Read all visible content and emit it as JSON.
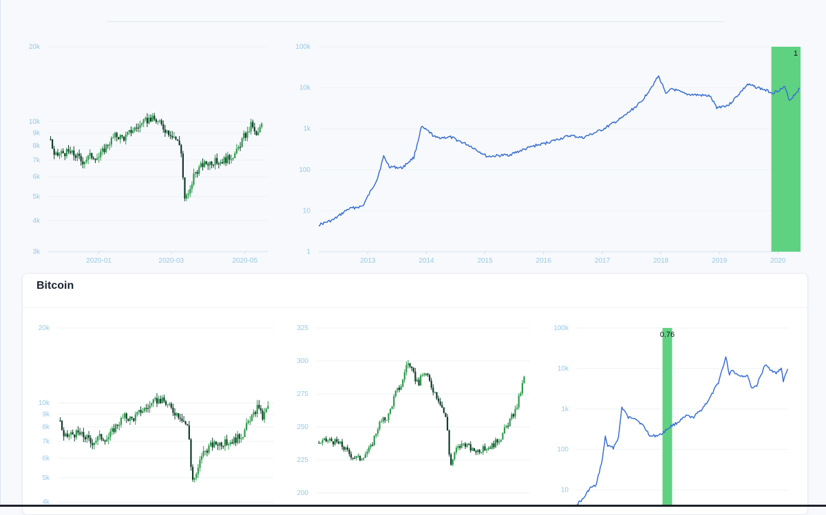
{
  "panel": {
    "title": "Bitcoin"
  },
  "colors": {
    "up": "#2a9a4a",
    "down": "#0f3b28",
    "line": "#3a6fd0",
    "highlight": "#5fd282",
    "tick": "#96c9e8",
    "grid": "#eef2f6"
  },
  "chart_data": [
    {
      "id": "top-left",
      "type": "candlestick",
      "scale": "log",
      "ylim": [
        3000,
        20000
      ],
      "yticks": [
        {
          "v": 3000,
          "label": "3k"
        },
        {
          "v": 4000,
          "label": "4k"
        },
        {
          "v": 5000,
          "label": "5k"
        },
        {
          "v": 6000,
          "label": "6k"
        },
        {
          "v": 7000,
          "label": "7k"
        },
        {
          "v": 8000,
          "label": "8k"
        },
        {
          "v": 9000,
          "label": "9k"
        },
        {
          "v": 10000,
          "label": "10k"
        },
        {
          "v": 20000,
          "label": "20k"
        }
      ],
      "xlim": [
        "2019-11-20",
        "2020-05-20"
      ],
      "xticks": [
        {
          "v": "2020-01-01",
          "label": "2020-01"
        },
        {
          "v": "2020-03-01",
          "label": "2020-03"
        },
        {
          "v": "2020-05-01",
          "label": "2020-05"
        }
      ],
      "series": [
        {
          "x": "2019-11-22",
          "y": 8500
        },
        {
          "x": "2019-11-25",
          "y": 7200
        },
        {
          "x": "2019-12-01",
          "y": 7500
        },
        {
          "x": "2019-12-08",
          "y": 7500
        },
        {
          "x": "2019-12-15",
          "y": 7200
        },
        {
          "x": "2019-12-18",
          "y": 6900
        },
        {
          "x": "2019-12-25",
          "y": 7300
        },
        {
          "x": "2020-01-01",
          "y": 7200
        },
        {
          "x": "2020-01-08",
          "y": 8100
        },
        {
          "x": "2020-01-15",
          "y": 8800
        },
        {
          "x": "2020-01-22",
          "y": 8600
        },
        {
          "x": "2020-01-29",
          "y": 9300
        },
        {
          "x": "2020-02-05",
          "y": 9700
        },
        {
          "x": "2020-02-12",
          "y": 10300
        },
        {
          "x": "2020-02-18",
          "y": 10100
        },
        {
          "x": "2020-02-25",
          "y": 9300
        },
        {
          "x": "2020-03-03",
          "y": 8800
        },
        {
          "x": "2020-03-09",
          "y": 7900
        },
        {
          "x": "2020-03-12",
          "y": 4900
        },
        {
          "x": "2020-03-16",
          "y": 5100
        },
        {
          "x": "2020-03-20",
          "y": 6200
        },
        {
          "x": "2020-03-27",
          "y": 6700
        },
        {
          "x": "2020-04-03",
          "y": 6900
        },
        {
          "x": "2020-04-10",
          "y": 6900
        },
        {
          "x": "2020-04-17",
          "y": 7100
        },
        {
          "x": "2020-04-24",
          "y": 7500
        },
        {
          "x": "2020-04-30",
          "y": 8700
        },
        {
          "x": "2020-05-03",
          "y": 8900
        },
        {
          "x": "2020-05-07",
          "y": 9900
        },
        {
          "x": "2020-05-10",
          "y": 8600
        },
        {
          "x": "2020-05-15",
          "y": 9700
        }
      ]
    },
    {
      "id": "top-right",
      "type": "line",
      "scale": "log",
      "ylim": [
        1,
        100000
      ],
      "yticks": [
        {
          "v": 1,
          "label": "1"
        },
        {
          "v": 10,
          "label": "10"
        },
        {
          "v": 100,
          "label": "100"
        },
        {
          "v": 1000,
          "label": "1k"
        },
        {
          "v": 10000,
          "label": "10k"
        },
        {
          "v": 100000,
          "label": "100k"
        }
      ],
      "xlim": [
        "2012-03-01",
        "2020-05-20"
      ],
      "xticks": [
        {
          "v": "2013-01-01",
          "label": "2013"
        },
        {
          "v": "2014-01-01",
          "label": "2014"
        },
        {
          "v": "2015-01-01",
          "label": "2015"
        },
        {
          "v": "2016-01-01",
          "label": "2016"
        },
        {
          "v": "2017-01-01",
          "label": "2017"
        },
        {
          "v": "2018-01-01",
          "label": "2018"
        },
        {
          "v": "2019-01-01",
          "label": "2019"
        },
        {
          "v": "2020-01-01",
          "label": "2020"
        }
      ],
      "highlight": {
        "x0": "2019-11-20",
        "x1": "2020-05-20",
        "label": "1"
      },
      "series": [
        {
          "x": "2012-03-01",
          "y": 4.5
        },
        {
          "x": "2012-06-01",
          "y": 6
        },
        {
          "x": "2012-09-01",
          "y": 11
        },
        {
          "x": "2012-12-01",
          "y": 13
        },
        {
          "x": "2013-03-01",
          "y": 60
        },
        {
          "x": "2013-04-10",
          "y": 210
        },
        {
          "x": "2013-05-15",
          "y": 120
        },
        {
          "x": "2013-08-01",
          "y": 110
        },
        {
          "x": "2013-10-15",
          "y": 200
        },
        {
          "x": "2013-12-01",
          "y": 1100
        },
        {
          "x": "2014-01-15",
          "y": 850
        },
        {
          "x": "2014-03-01",
          "y": 600
        },
        {
          "x": "2014-06-01",
          "y": 620
        },
        {
          "x": "2014-10-01",
          "y": 380
        },
        {
          "x": "2015-01-15",
          "y": 210
        },
        {
          "x": "2015-06-01",
          "y": 230
        },
        {
          "x": "2015-11-01",
          "y": 380
        },
        {
          "x": "2016-01-01",
          "y": 430
        },
        {
          "x": "2016-06-15",
          "y": 680
        },
        {
          "x": "2016-09-01",
          "y": 600
        },
        {
          "x": "2017-01-01",
          "y": 950
        },
        {
          "x": "2017-05-01",
          "y": 1800
        },
        {
          "x": "2017-09-01",
          "y": 4500
        },
        {
          "x": "2017-12-17",
          "y": 19000
        },
        {
          "x": "2018-02-06",
          "y": 7000
        },
        {
          "x": "2018-03-10",
          "y": 9500
        },
        {
          "x": "2018-06-01",
          "y": 7000
        },
        {
          "x": "2018-11-01",
          "y": 6300
        },
        {
          "x": "2018-12-15",
          "y": 3300
        },
        {
          "x": "2019-03-01",
          "y": 3800
        },
        {
          "x": "2019-06-25",
          "y": 12000
        },
        {
          "x": "2019-09-01",
          "y": 10000
        },
        {
          "x": "2019-12-01",
          "y": 7500
        },
        {
          "x": "2020-02-12",
          "y": 10300
        },
        {
          "x": "2020-03-13",
          "y": 4900
        },
        {
          "x": "2020-05-15",
          "y": 9700
        }
      ]
    },
    {
      "id": "bottom-left",
      "type": "candlestick",
      "scale": "log",
      "ylim": [
        4000,
        20000
      ],
      "yticks": [
        {
          "v": 4000,
          "label": "4k"
        },
        {
          "v": 5000,
          "label": "5k"
        },
        {
          "v": 6000,
          "label": "6k"
        },
        {
          "v": 7000,
          "label": "7k"
        },
        {
          "v": 8000,
          "label": "8k"
        },
        {
          "v": 9000,
          "label": "9k"
        },
        {
          "v": 10000,
          "label": "10k"
        },
        {
          "v": 20000,
          "label": "20k"
        }
      ],
      "xlim": [
        "2019-11-20",
        "2020-05-20"
      ],
      "xticks": [],
      "series": [
        {
          "x": "2019-11-22",
          "y": 8500
        },
        {
          "x": "2019-11-25",
          "y": 7200
        },
        {
          "x": "2019-12-01",
          "y": 7500
        },
        {
          "x": "2019-12-08",
          "y": 7500
        },
        {
          "x": "2019-12-15",
          "y": 7200
        },
        {
          "x": "2019-12-18",
          "y": 6900
        },
        {
          "x": "2019-12-25",
          "y": 7300
        },
        {
          "x": "2020-01-01",
          "y": 7200
        },
        {
          "x": "2020-01-08",
          "y": 8100
        },
        {
          "x": "2020-01-15",
          "y": 8800
        },
        {
          "x": "2020-01-22",
          "y": 8600
        },
        {
          "x": "2020-01-29",
          "y": 9300
        },
        {
          "x": "2020-02-05",
          "y": 9700
        },
        {
          "x": "2020-02-12",
          "y": 10300
        },
        {
          "x": "2020-02-18",
          "y": 10100
        },
        {
          "x": "2020-02-25",
          "y": 9300
        },
        {
          "x": "2020-03-03",
          "y": 8800
        },
        {
          "x": "2020-03-09",
          "y": 7900
        },
        {
          "x": "2020-03-12",
          "y": 4900
        },
        {
          "x": "2020-03-16",
          "y": 5100
        },
        {
          "x": "2020-03-20",
          "y": 6200
        },
        {
          "x": "2020-03-27",
          "y": 6700
        },
        {
          "x": "2020-04-03",
          "y": 6900
        },
        {
          "x": "2020-04-10",
          "y": 6900
        },
        {
          "x": "2020-04-17",
          "y": 7100
        },
        {
          "x": "2020-04-24",
          "y": 7500
        },
        {
          "x": "2020-04-30",
          "y": 8700
        },
        {
          "x": "2020-05-03",
          "y": 8900
        },
        {
          "x": "2020-05-07",
          "y": 9900
        },
        {
          "x": "2020-05-10",
          "y": 8600
        },
        {
          "x": "2020-05-15",
          "y": 9700
        }
      ]
    },
    {
      "id": "bottom-middle",
      "type": "candlestick",
      "scale": "linear",
      "ylim": [
        190,
        325
      ],
      "yticks": [
        {
          "v": 200,
          "label": "200"
        },
        {
          "v": 225,
          "label": "225"
        },
        {
          "v": 250,
          "label": "250"
        },
        {
          "v": 275,
          "label": "275"
        },
        {
          "v": 300,
          "label": "300"
        },
        {
          "v": 325,
          "label": "325"
        }
      ],
      "xlim": [
        "2019-11-20",
        "2020-05-20"
      ],
      "xticks": [],
      "series": [
        {
          "x": "2019-11-22",
          "y": 238
        },
        {
          "x": "2019-12-01",
          "y": 240
        },
        {
          "x": "2019-12-10",
          "y": 237
        },
        {
          "x": "2019-12-20",
          "y": 228
        },
        {
          "x": "2019-12-27",
          "y": 226
        },
        {
          "x": "2020-01-05",
          "y": 234
        },
        {
          "x": "2020-01-12",
          "y": 252
        },
        {
          "x": "2020-01-20",
          "y": 258
        },
        {
          "x": "2020-01-26",
          "y": 275
        },
        {
          "x": "2020-02-01",
          "y": 283
        },
        {
          "x": "2020-02-05",
          "y": 300
        },
        {
          "x": "2020-02-10",
          "y": 290
        },
        {
          "x": "2020-02-15",
          "y": 283
        },
        {
          "x": "2020-02-20",
          "y": 292
        },
        {
          "x": "2020-02-26",
          "y": 281
        },
        {
          "x": "2020-03-05",
          "y": 268
        },
        {
          "x": "2020-03-10",
          "y": 254
        },
        {
          "x": "2020-03-13",
          "y": 220
        },
        {
          "x": "2020-03-18",
          "y": 233
        },
        {
          "x": "2020-03-25",
          "y": 238
        },
        {
          "x": "2020-04-01",
          "y": 232
        },
        {
          "x": "2020-04-10",
          "y": 233
        },
        {
          "x": "2020-04-18",
          "y": 236
        },
        {
          "x": "2020-04-25",
          "y": 242
        },
        {
          "x": "2020-05-01",
          "y": 252
        },
        {
          "x": "2020-05-08",
          "y": 263
        },
        {
          "x": "2020-05-15",
          "y": 287
        }
      ]
    },
    {
      "id": "bottom-right",
      "type": "line",
      "scale": "log",
      "ylim": [
        4,
        100000
      ],
      "yticks": [
        {
          "v": 10,
          "label": "10"
        },
        {
          "v": 100,
          "label": "100"
        },
        {
          "v": 1000,
          "label": "1k"
        },
        {
          "v": 10000,
          "label": "10k"
        },
        {
          "v": 100000,
          "label": "100k"
        }
      ],
      "xlim": [
        "2012-03-01",
        "2020-05-20"
      ],
      "xticks": [],
      "highlight": {
        "x0": "2015-07-01",
        "x1": "2015-11-15",
        "label": "0.76"
      },
      "series": [
        {
          "x": "2012-03-01",
          "y": 4.5
        },
        {
          "x": "2012-06-01",
          "y": 6
        },
        {
          "x": "2012-09-01",
          "y": 11
        },
        {
          "x": "2012-12-01",
          "y": 13
        },
        {
          "x": "2013-03-01",
          "y": 60
        },
        {
          "x": "2013-04-10",
          "y": 210
        },
        {
          "x": "2013-05-15",
          "y": 120
        },
        {
          "x": "2013-08-01",
          "y": 110
        },
        {
          "x": "2013-10-15",
          "y": 200
        },
        {
          "x": "2013-12-01",
          "y": 1100
        },
        {
          "x": "2014-01-15",
          "y": 850
        },
        {
          "x": "2014-03-01",
          "y": 600
        },
        {
          "x": "2014-06-01",
          "y": 620
        },
        {
          "x": "2014-10-01",
          "y": 380
        },
        {
          "x": "2015-01-15",
          "y": 210
        },
        {
          "x": "2015-06-01",
          "y": 230
        },
        {
          "x": "2015-11-01",
          "y": 380
        },
        {
          "x": "2016-01-01",
          "y": 430
        },
        {
          "x": "2016-06-15",
          "y": 680
        },
        {
          "x": "2016-09-01",
          "y": 600
        },
        {
          "x": "2017-01-01",
          "y": 950
        },
        {
          "x": "2017-05-01",
          "y": 1800
        },
        {
          "x": "2017-09-01",
          "y": 4500
        },
        {
          "x": "2017-12-17",
          "y": 19000
        },
        {
          "x": "2018-02-06",
          "y": 7000
        },
        {
          "x": "2018-03-10",
          "y": 9500
        },
        {
          "x": "2018-06-01",
          "y": 7000
        },
        {
          "x": "2018-11-01",
          "y": 6300
        },
        {
          "x": "2018-12-15",
          "y": 3300
        },
        {
          "x": "2019-03-01",
          "y": 3800
        },
        {
          "x": "2019-06-25",
          "y": 12000
        },
        {
          "x": "2019-09-01",
          "y": 10000
        },
        {
          "x": "2019-12-01",
          "y": 7500
        },
        {
          "x": "2020-02-12",
          "y": 10300
        },
        {
          "x": "2020-03-13",
          "y": 4900
        },
        {
          "x": "2020-05-15",
          "y": 9700
        }
      ]
    }
  ]
}
